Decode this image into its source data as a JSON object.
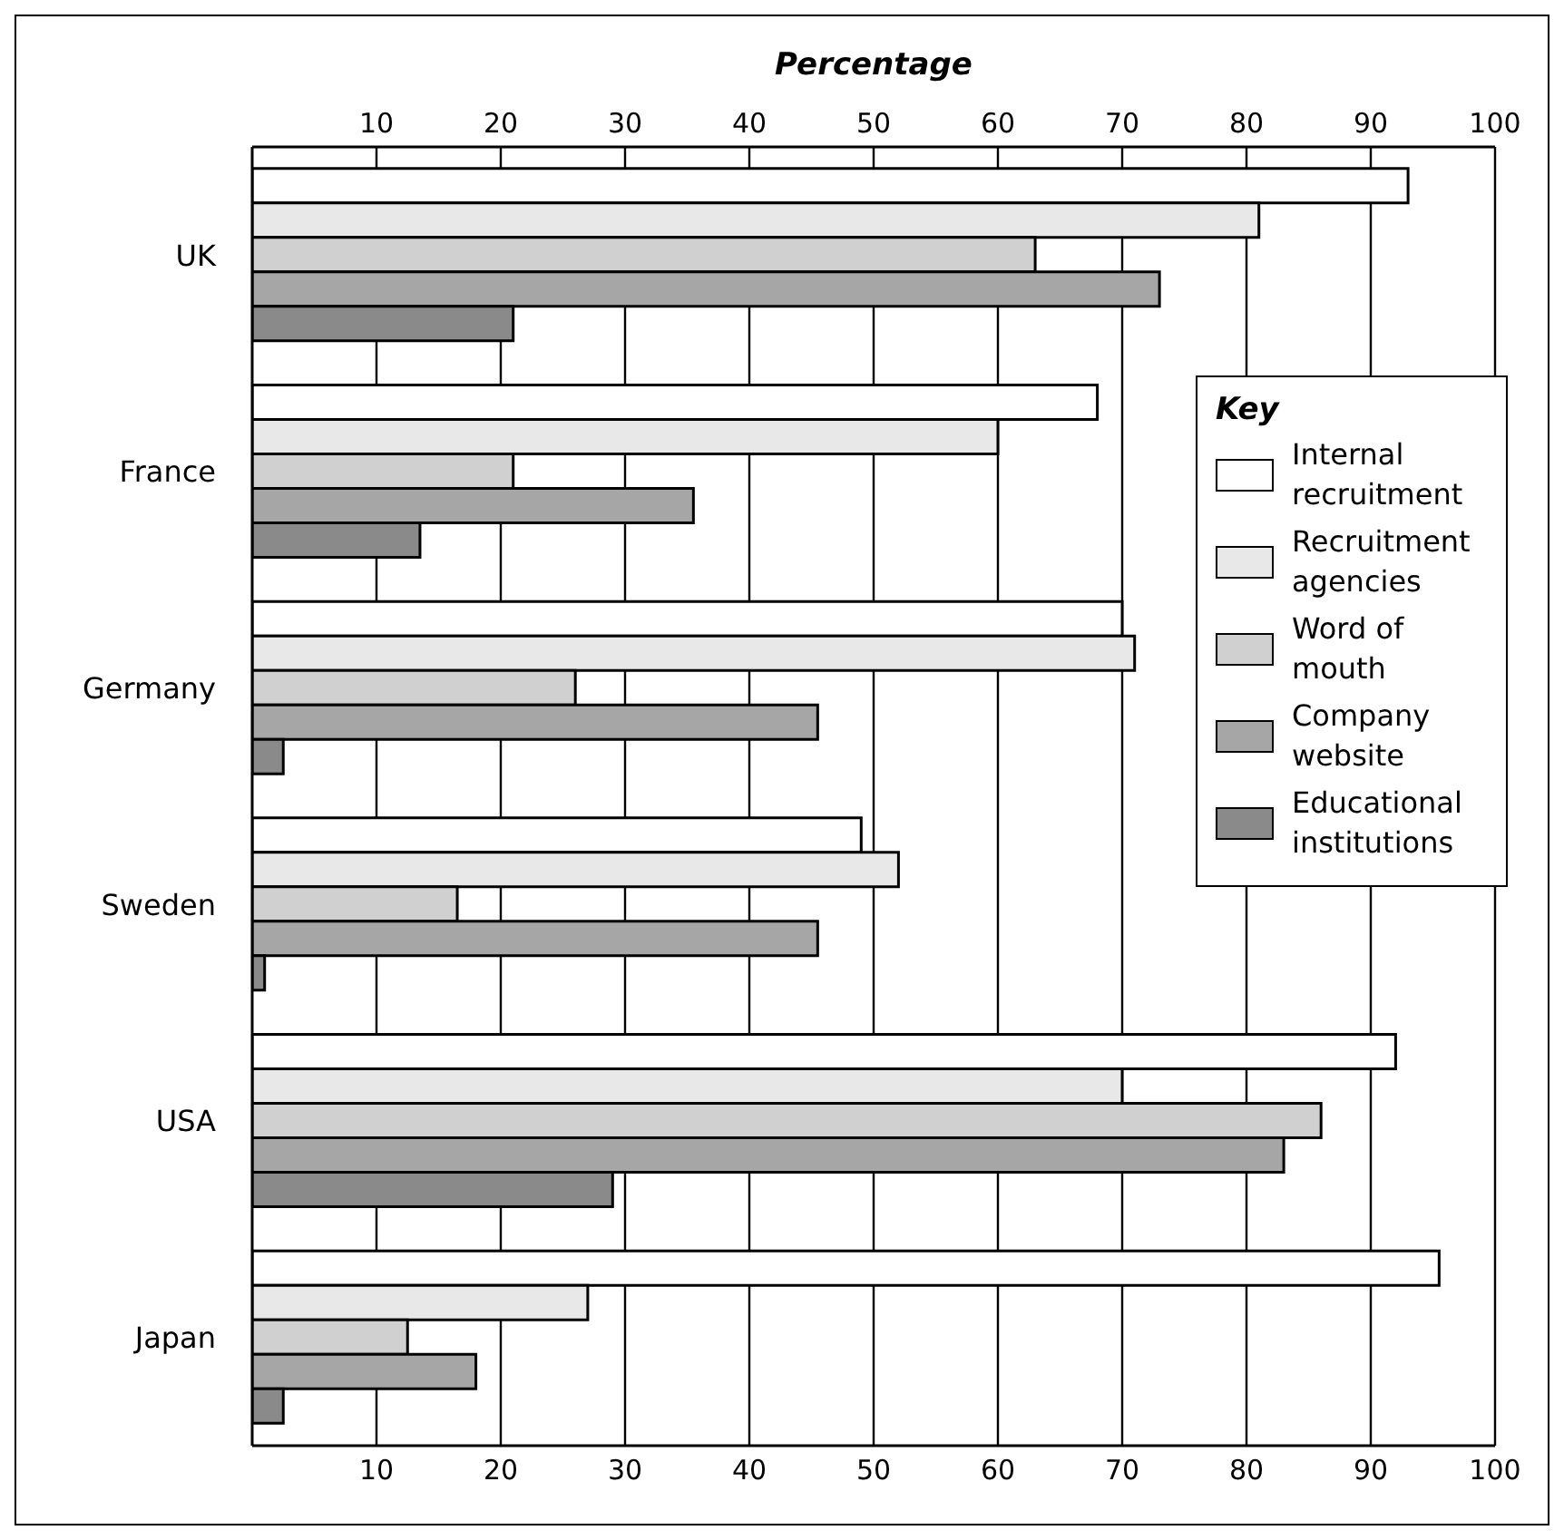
{
  "chart_data": {
    "type": "bar",
    "orientation": "horizontal",
    "xlabel": "Percentage",
    "legend_title": "Key",
    "categories": [
      "UK",
      "France",
      "Germany",
      "Sweden",
      "USA",
      "Japan"
    ],
    "series": [
      {
        "name": "Internal recruitment",
        "color": "#ffffff",
        "values": [
          93,
          68,
          70,
          49,
          92,
          95.5
        ]
      },
      {
        "name": "Recruitment agencies",
        "color": "#e8e8e8",
        "values": [
          81,
          60,
          71,
          52,
          70,
          27
        ]
      },
      {
        "name": "Word of mouth",
        "color": "#d0d0d0",
        "values": [
          63,
          21,
          26,
          16.5,
          86,
          12.5
        ]
      },
      {
        "name": "Company website",
        "color": "#a6a6a6",
        "values": [
          73,
          35.5,
          45.5,
          45.5,
          83,
          18
        ]
      },
      {
        "name": "Educational institutions",
        "color": "#8a8a8a",
        "values": [
          21,
          13.5,
          2.5,
          1,
          29,
          2.5
        ]
      }
    ],
    "xlim": [
      0,
      100
    ],
    "xticks": [
      10,
      20,
      30,
      40,
      50,
      60,
      70,
      80,
      90,
      100
    ],
    "x2lim": [
      0,
      100
    ],
    "x2ticks": [
      10,
      20,
      30,
      40,
      50,
      60,
      70,
      80,
      90,
      100
    ],
    "grid": "x",
    "legend": "right"
  }
}
